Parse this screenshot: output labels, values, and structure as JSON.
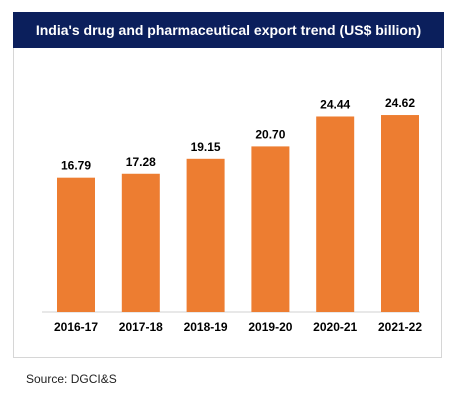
{
  "chart_data": {
    "type": "bar",
    "title": "India's drug and pharmaceutical export trend (US$ billion)",
    "categories": [
      "2016-17",
      "2017-18",
      "2018-19",
      "2019-20",
      "2020-21",
      "2021-22"
    ],
    "values": [
      16.79,
      17.28,
      19.15,
      20.7,
      24.44,
      24.62
    ],
    "value_labels": [
      "16.79",
      "17.28",
      "19.15",
      "20.70",
      "24.44",
      "24.62"
    ],
    "xlabel": "",
    "ylabel": "",
    "ylim": [
      0,
      25
    ],
    "grid": false,
    "legend": "none",
    "bar_color": "#ed7d31",
    "title_bg_color": "#0b1f5c"
  },
  "source": "Source: DGCI&S"
}
